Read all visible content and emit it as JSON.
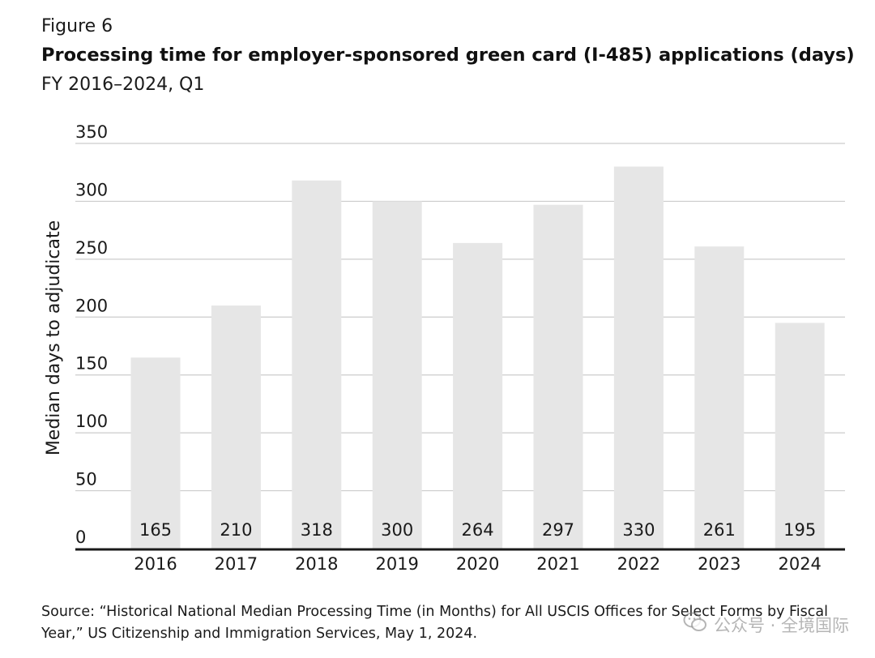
{
  "figure_label": "Figure 6",
  "title": "Processing time for employer-sponsored green card (I-485) applications (days)",
  "subtitle": "FY 2016–2024, Q1",
  "source": "Source: “Historical National Median Processing Time (in Months) for All USCIS Offices for Select Forms by Fiscal Year,” US Citizenship and Immigration Services, May 1, 2024.",
  "watermark": "公众号 · 全境国际",
  "watermark_icon": "wechat-icon",
  "colors": {
    "bar": "#e6e6e6",
    "grid": "#cccccc",
    "axis": "#1a1a1a",
    "text": "#1a1a1a"
  },
  "chart_data": {
    "type": "bar",
    "title": "Processing time for employer-sponsored green card (I-485) applications (days)",
    "subtitle": "FY 2016–2024, Q1",
    "xlabel": "",
    "ylabel": "Median days to adjudicate",
    "categories": [
      "2016",
      "2017",
      "2018",
      "2019",
      "2020",
      "2021",
      "2022",
      "2023",
      "2024"
    ],
    "values": [
      165,
      210,
      318,
      300,
      264,
      297,
      330,
      261,
      195
    ],
    "data_labels": [
      "165",
      "210",
      "318",
      "300",
      "264",
      "297",
      "330",
      "261",
      "195"
    ],
    "ylim": [
      0,
      350
    ],
    "yticks": [
      0,
      50,
      100,
      150,
      200,
      250,
      300,
      350
    ],
    "grid": true,
    "legend": "none"
  }
}
